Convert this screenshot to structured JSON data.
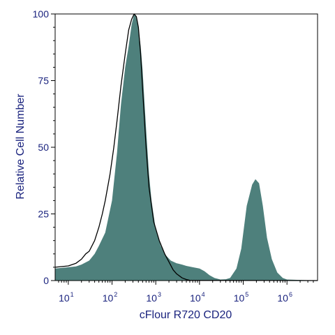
{
  "chart_data": {
    "type": "area",
    "xlabel": "cFlour R720 CD20",
    "ylabel": "Relative Cell Number",
    "x_scale": "log",
    "xlim": [
      5,
      5000000
    ],
    "ylim": [
      0,
      100
    ],
    "x_ticks": [
      {
        "base": "10",
        "exp": "1",
        "value": 10
      },
      {
        "base": "10",
        "exp": "2",
        "value": 100
      },
      {
        "base": "10",
        "exp": "3",
        "value": 1000
      },
      {
        "base": "10",
        "exp": "4",
        "value": 10000
      },
      {
        "base": "10",
        "exp": "5",
        "value": 100000
      },
      {
        "base": "10",
        "exp": "6",
        "value": 1000000
      }
    ],
    "y_ticks": [
      "0",
      "25",
      "50",
      "75",
      "100"
    ],
    "y_tick_values": [
      0,
      25,
      50,
      75,
      100
    ],
    "grid": false,
    "legend": "none",
    "series": [
      {
        "style": "filled",
        "color": "#4e807c",
        "points": [
          [
            5,
            4.5
          ],
          [
            10,
            5.0
          ],
          [
            15,
            5.3
          ],
          [
            20,
            6.0
          ],
          [
            30,
            7.5
          ],
          [
            40,
            10.0
          ],
          [
            50,
            13.0
          ],
          [
            70,
            18.0
          ],
          [
            100,
            30.0
          ],
          [
            130,
            48.0
          ],
          [
            160,
            66.0
          ],
          [
            200,
            80.0
          ],
          [
            240,
            88.0
          ],
          [
            280,
            96.0
          ],
          [
            320,
            100.0
          ],
          [
            360,
            99.0
          ],
          [
            400,
            95.0
          ],
          [
            450,
            88.0
          ],
          [
            500,
            79.0
          ],
          [
            600,
            57.0
          ],
          [
            700,
            40.0
          ],
          [
            800,
            30.0
          ],
          [
            1000,
            19.0
          ],
          [
            1300,
            13.0
          ],
          [
            1700,
            9.5
          ],
          [
            2200,
            7.5
          ],
          [
            3000,
            6.5
          ],
          [
            4000,
            6.0
          ],
          [
            5000,
            5.5
          ],
          [
            7000,
            5.0
          ],
          [
            10000,
            4.5
          ],
          [
            13000,
            3.5
          ],
          [
            17000,
            2.0
          ],
          [
            22000,
            1.0
          ],
          [
            30000,
            0.4
          ],
          [
            40000,
            0.5
          ],
          [
            50000,
            1.0
          ],
          [
            70000,
            4.5
          ],
          [
            90000,
            12.0
          ],
          [
            120000,
            28.0
          ],
          [
            160000,
            36.0
          ],
          [
            190000,
            38.0
          ],
          [
            230000,
            36.5
          ],
          [
            280000,
            28.0
          ],
          [
            350000,
            16.0
          ],
          [
            450000,
            8.0
          ],
          [
            600000,
            3.0
          ],
          [
            800000,
            1.0
          ],
          [
            1000000,
            0.4
          ],
          [
            5000000,
            0
          ]
        ]
      },
      {
        "style": "outline",
        "color": "#000000",
        "points": [
          [
            5,
            5.0
          ],
          [
            10,
            5.5
          ],
          [
            15,
            6.5
          ],
          [
            20,
            8.0
          ],
          [
            25,
            10.0
          ],
          [
            30,
            11.0
          ],
          [
            40,
            15.0
          ],
          [
            50,
            20.0
          ],
          [
            60,
            25.0
          ],
          [
            70,
            30.0
          ],
          [
            90,
            40.0
          ],
          [
            110,
            50.0
          ],
          [
            130,
            60.0
          ],
          [
            160,
            73.0
          ],
          [
            200,
            85.0
          ],
          [
            240,
            94.0
          ],
          [
            280,
            98.0
          ],
          [
            320,
            100.0
          ],
          [
            360,
            99.0
          ],
          [
            400,
            95.0
          ],
          [
            450,
            85.0
          ],
          [
            500,
            72.0
          ],
          [
            600,
            50.0
          ],
          [
            700,
            35.0
          ],
          [
            900,
            22.0
          ],
          [
            1200,
            15.0
          ],
          [
            1600,
            10.0
          ],
          [
            2000,
            7.0
          ],
          [
            2500,
            4.0
          ],
          [
            3000,
            2.5
          ],
          [
            4000,
            1.0
          ],
          [
            5000,
            0.4
          ],
          [
            6000,
            0.1
          ],
          [
            5000000,
            0
          ]
        ]
      }
    ]
  }
}
